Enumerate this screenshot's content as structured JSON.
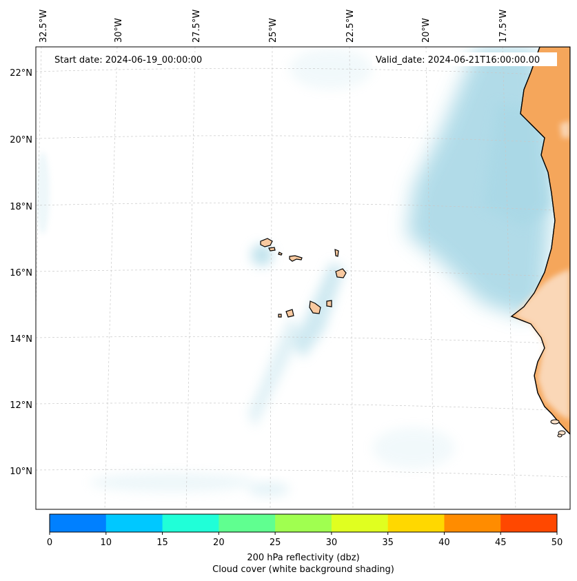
{
  "header": {
    "start_date": "Start date: 2024-06-19_00:00:00",
    "valid_date": "Valid_date: 2024-06-21T16:00:00.00"
  },
  "axes": {
    "lon_labels": [
      "32.5°W",
      "30°W",
      "27.5°W",
      "25°W",
      "22.5°W",
      "20°W",
      "17.5°W"
    ],
    "lat_labels": [
      "22°N",
      "20°N",
      "18°N",
      "16°N",
      "14°N",
      "12°N",
      "10°N"
    ]
  },
  "colorbar": {
    "ticks": [
      "0",
      "10",
      "15",
      "20",
      "25",
      "30",
      "35",
      "40",
      "45",
      "50"
    ],
    "colors": [
      "#0080ff",
      "#00c8ff",
      "#20ffd8",
      "#60ff90",
      "#a0ff50",
      "#e0ff20",
      "#ffd800",
      "#ff8c00",
      "#ff4800"
    ],
    "label_line1": "200 hPa reflectivity (dbz)",
    "label_line2": "Cloud cover (white background shading)"
  },
  "colors": {
    "land": "#f5a65b",
    "cloud": "#a9d8e6",
    "island": "#f8c9a0"
  }
}
